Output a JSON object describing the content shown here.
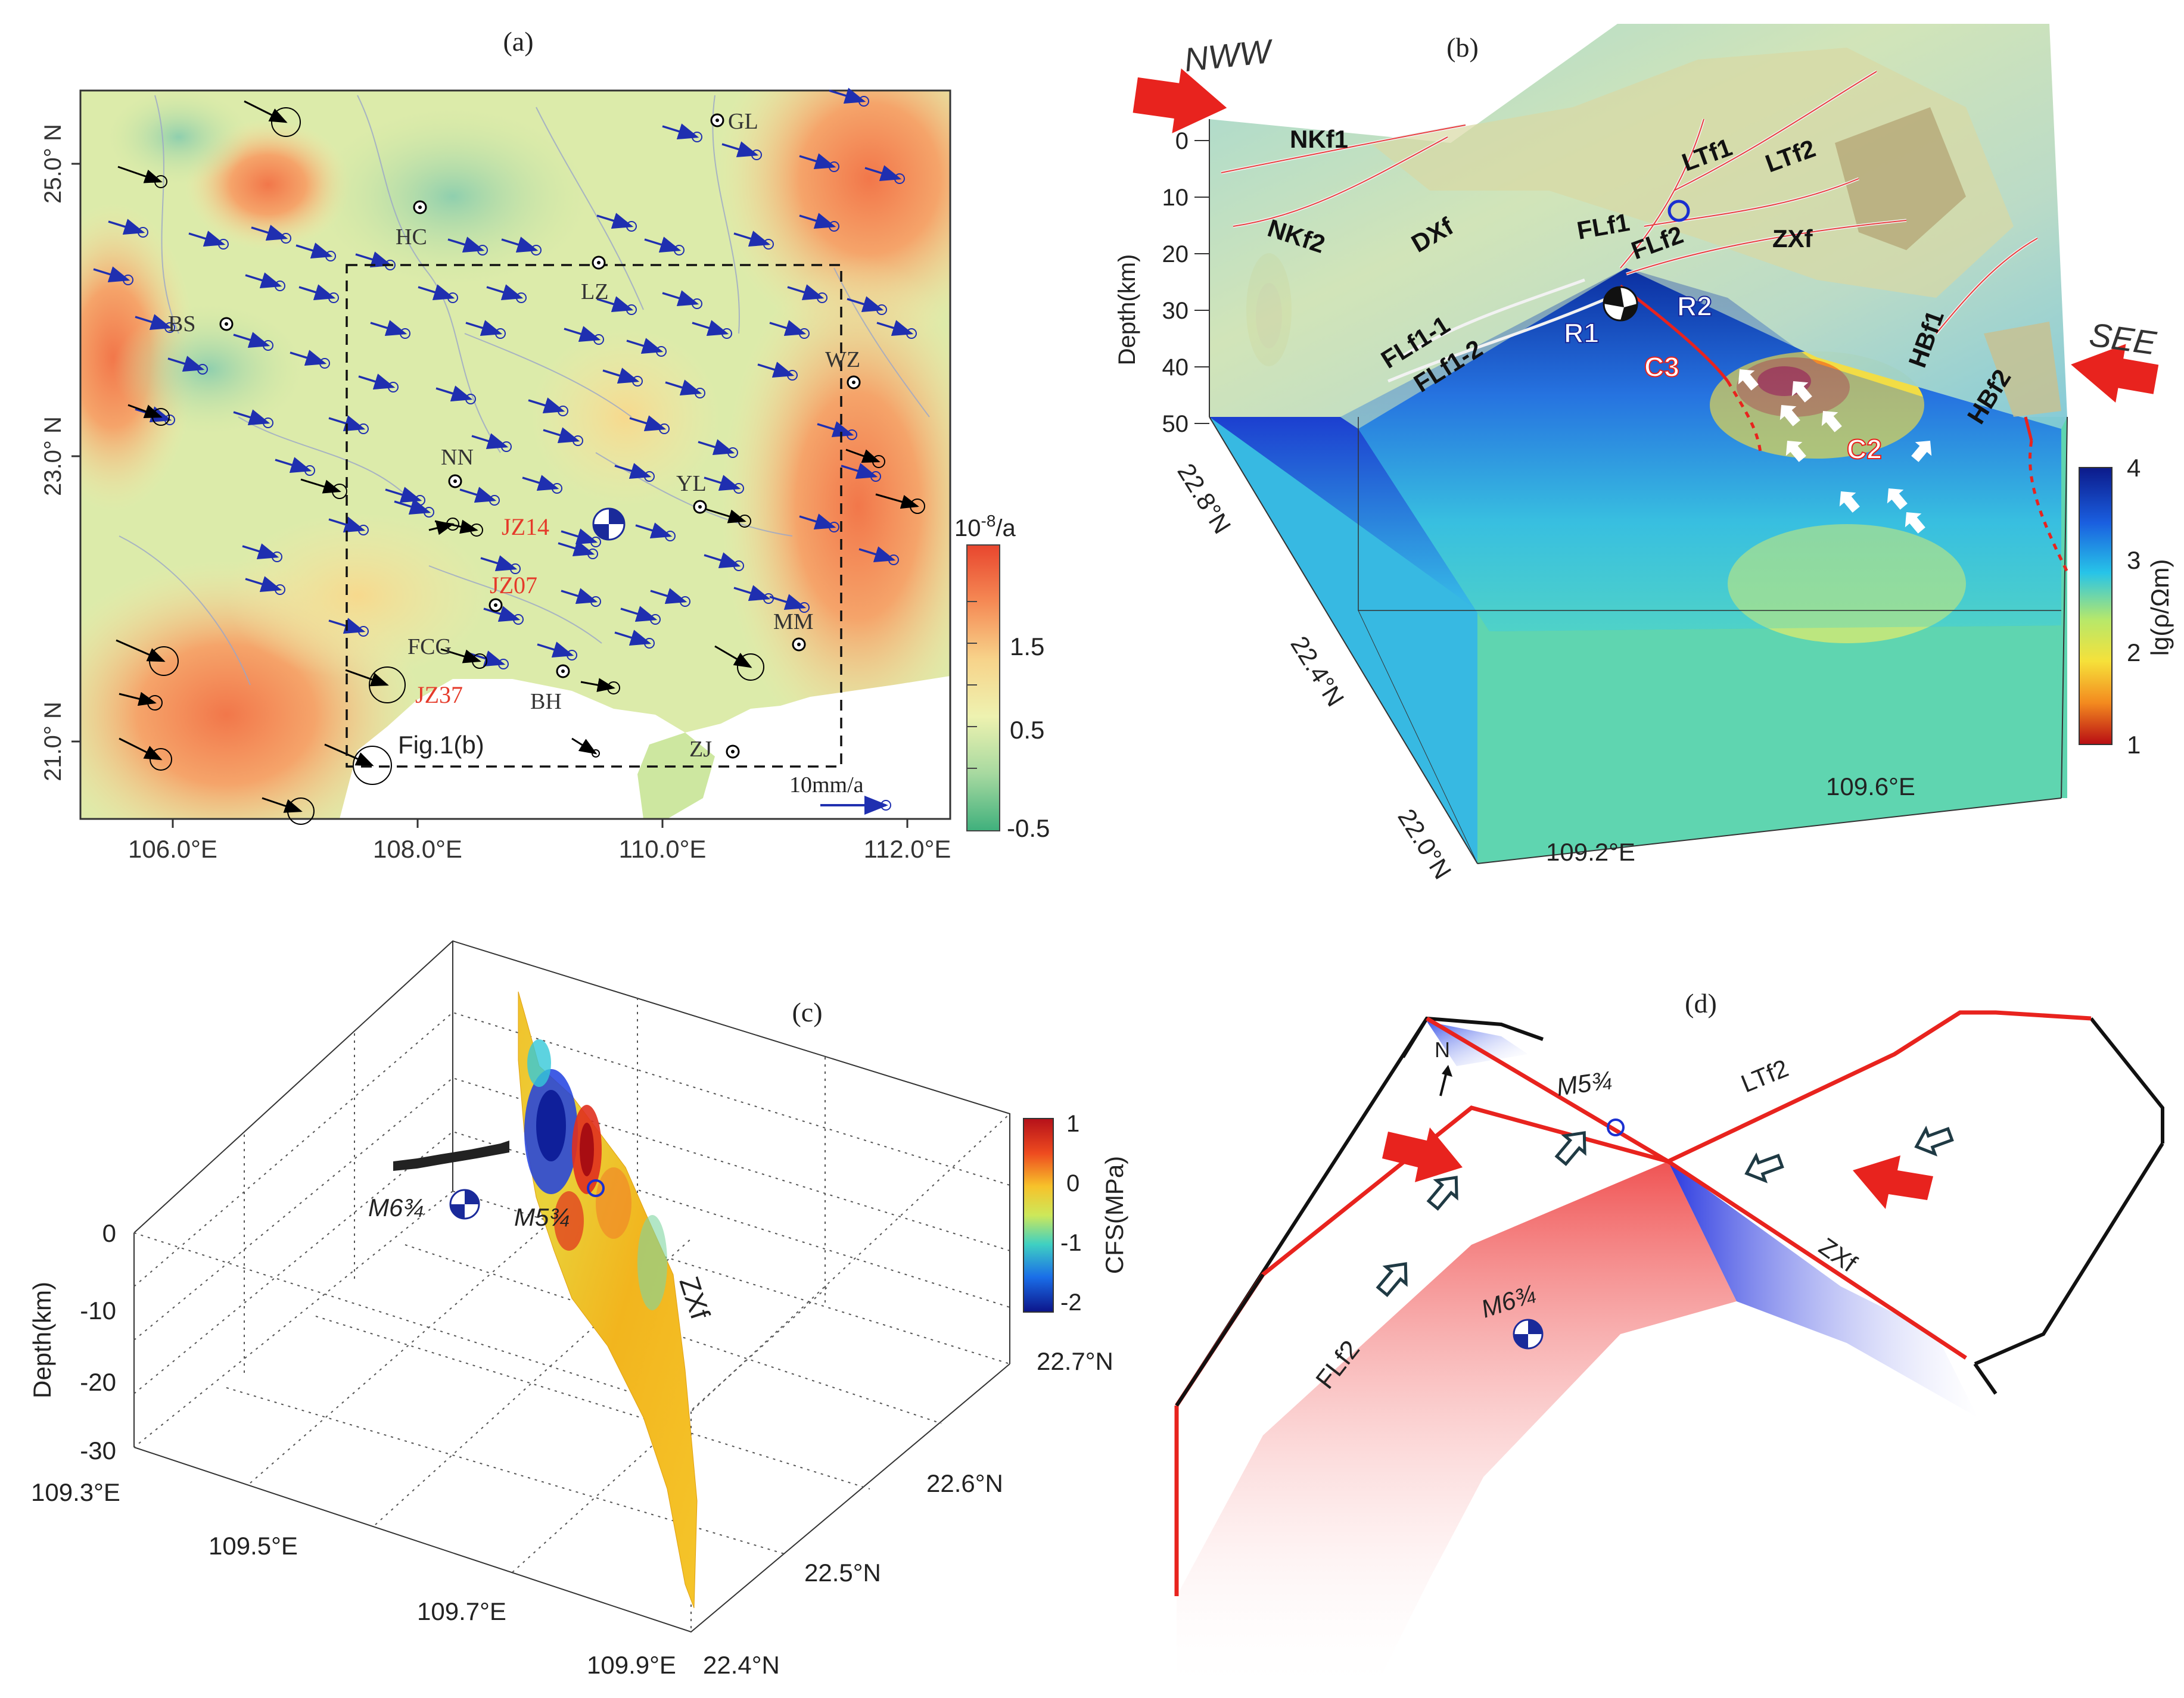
{
  "panel_a": {
    "caption": "(a)",
    "lat_labels": [
      "25.0° N",
      "23.0° N",
      "21.0° N"
    ],
    "lon_labels": [
      "106.0°E",
      "108.0°E",
      "110.0°E",
      "112.0°E"
    ],
    "stations": [
      "GL",
      "HC",
      "LZ",
      "BS",
      "WZ",
      "NN",
      "YL",
      "MM",
      "FCG",
      "BH",
      "ZJ"
    ],
    "highlighted_stations": [
      "JZ14",
      "JZ07",
      "JZ37"
    ],
    "inset_label": "Fig.1(b)",
    "scale_label": "10mm/a",
    "colorbar": {
      "unit": "10-8/a",
      "ticks": [
        "1.5",
        "0.5",
        "-0.5"
      ]
    }
  },
  "panel_b": {
    "caption": "(b)",
    "compass_left": "NWW",
    "compass_right": "SEE",
    "depth_axis_title": "Depth(km)",
    "depth_ticks": [
      "0",
      "10",
      "20",
      "30",
      "40",
      "50"
    ],
    "lat_ticks": [
      "22.8°N",
      "22.4°N",
      "22.0°N"
    ],
    "lon_ticks": [
      "109.2°E",
      "109.6°E"
    ],
    "fault_labels": [
      "NKf1",
      "NKf2",
      "DXf",
      "FLf1",
      "FLf2",
      "LTf1",
      "LTf2",
      "ZXf",
      "FLf1-1",
      "FLf1-2",
      "HBf1",
      "HBf2"
    ],
    "bodies": [
      "R1",
      "R2",
      "C3",
      "C2"
    ],
    "colorbar": {
      "title": "lg(ρ/Ωm)",
      "ticks": [
        "4",
        "3",
        "2",
        "1"
      ]
    }
  },
  "panel_c": {
    "caption": "(c)",
    "depth_axis_title": "Depth(km)",
    "depth_ticks": [
      "0",
      "-10",
      "-20",
      "-30"
    ],
    "lon_ticks": [
      "109.3°E",
      "109.5°E",
      "109.7°E",
      "109.9°E"
    ],
    "lat_ticks": [
      "22.4°N",
      "22.5°N",
      "22.6°N",
      "22.7°N"
    ],
    "fault_label": "ZXf",
    "event_big": "M6¾",
    "event_small": "M5¾",
    "colorbar": {
      "title": "CFS(MPa)",
      "ticks": [
        "1",
        "0",
        "-1",
        "-2"
      ]
    }
  },
  "panel_d": {
    "caption": "(d)",
    "north": "N",
    "event_small": "M5¾",
    "event_big": "M6¾",
    "fault_labels": [
      "LTf2",
      "ZXf",
      "FLf2"
    ]
  },
  "colors": {
    "blue_vector": "#1f2fb0",
    "red_accent": "#e8231e",
    "red_station_text": "#e53a2a",
    "arrow_dark": "#1f3a44"
  }
}
